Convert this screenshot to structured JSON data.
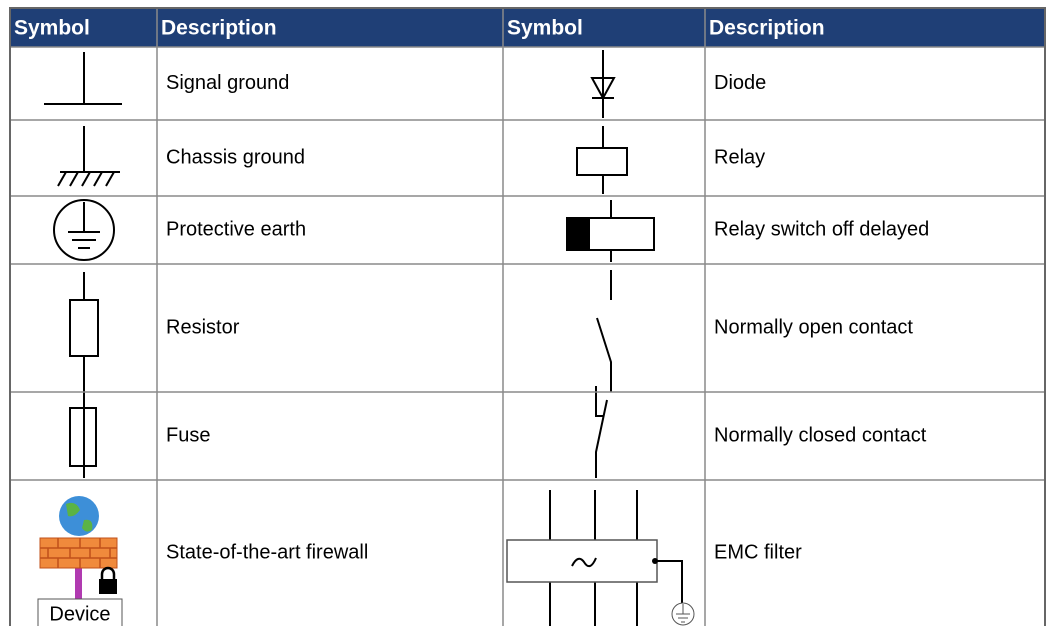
{
  "table": {
    "header": [
      "Symbol",
      "Description",
      "Symbol",
      "Description"
    ],
    "rows": [
      [
        "Signal ground",
        "Diode"
      ],
      [
        "Chassis ground",
        "Relay"
      ],
      [
        "Protective earth",
        "Relay switch off delayed"
      ],
      [
        "Resistor",
        "Normally open contact"
      ],
      [
        "Fuse",
        "Normally closed contact"
      ],
      [
        "State-of-the-art firewall",
        "EMC filter"
      ]
    ],
    "firewall_label": "Device"
  }
}
